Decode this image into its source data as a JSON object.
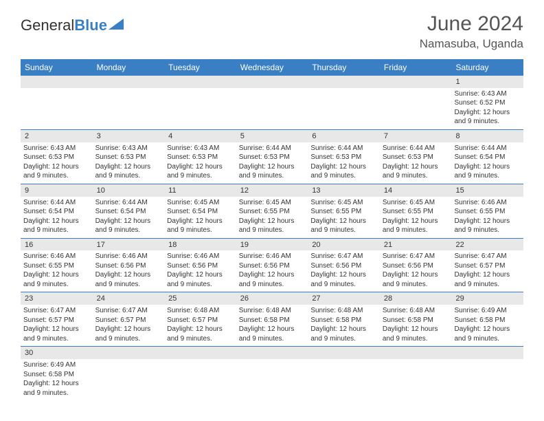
{
  "brand": {
    "part1": "General",
    "part2": "Blue"
  },
  "title": "June 2024",
  "location": "Namasuba, Uganda",
  "colors": {
    "header_bg": "#3a7fc4",
    "numrow_bg": "#e8e8e8",
    "text": "#333333",
    "title_text": "#555555"
  },
  "day_names": [
    "Sunday",
    "Monday",
    "Tuesday",
    "Wednesday",
    "Thursday",
    "Friday",
    "Saturday"
  ],
  "weeks": [
    [
      null,
      null,
      null,
      null,
      null,
      null,
      {
        "d": "1",
        "sr": "6:43 AM",
        "ss": "6:52 PM",
        "dl": "12 hours and 9 minutes."
      }
    ],
    [
      {
        "d": "2",
        "sr": "6:43 AM",
        "ss": "6:53 PM",
        "dl": "12 hours and 9 minutes."
      },
      {
        "d": "3",
        "sr": "6:43 AM",
        "ss": "6:53 PM",
        "dl": "12 hours and 9 minutes."
      },
      {
        "d": "4",
        "sr": "6:43 AM",
        "ss": "6:53 PM",
        "dl": "12 hours and 9 minutes."
      },
      {
        "d": "5",
        "sr": "6:44 AM",
        "ss": "6:53 PM",
        "dl": "12 hours and 9 minutes."
      },
      {
        "d": "6",
        "sr": "6:44 AM",
        "ss": "6:53 PM",
        "dl": "12 hours and 9 minutes."
      },
      {
        "d": "7",
        "sr": "6:44 AM",
        "ss": "6:53 PM",
        "dl": "12 hours and 9 minutes."
      },
      {
        "d": "8",
        "sr": "6:44 AM",
        "ss": "6:54 PM",
        "dl": "12 hours and 9 minutes."
      }
    ],
    [
      {
        "d": "9",
        "sr": "6:44 AM",
        "ss": "6:54 PM",
        "dl": "12 hours and 9 minutes."
      },
      {
        "d": "10",
        "sr": "6:44 AM",
        "ss": "6:54 PM",
        "dl": "12 hours and 9 minutes."
      },
      {
        "d": "11",
        "sr": "6:45 AM",
        "ss": "6:54 PM",
        "dl": "12 hours and 9 minutes."
      },
      {
        "d": "12",
        "sr": "6:45 AM",
        "ss": "6:55 PM",
        "dl": "12 hours and 9 minutes."
      },
      {
        "d": "13",
        "sr": "6:45 AM",
        "ss": "6:55 PM",
        "dl": "12 hours and 9 minutes."
      },
      {
        "d": "14",
        "sr": "6:45 AM",
        "ss": "6:55 PM",
        "dl": "12 hours and 9 minutes."
      },
      {
        "d": "15",
        "sr": "6:46 AM",
        "ss": "6:55 PM",
        "dl": "12 hours and 9 minutes."
      }
    ],
    [
      {
        "d": "16",
        "sr": "6:46 AM",
        "ss": "6:55 PM",
        "dl": "12 hours and 9 minutes."
      },
      {
        "d": "17",
        "sr": "6:46 AM",
        "ss": "6:56 PM",
        "dl": "12 hours and 9 minutes."
      },
      {
        "d": "18",
        "sr": "6:46 AM",
        "ss": "6:56 PM",
        "dl": "12 hours and 9 minutes."
      },
      {
        "d": "19",
        "sr": "6:46 AM",
        "ss": "6:56 PM",
        "dl": "12 hours and 9 minutes."
      },
      {
        "d": "20",
        "sr": "6:47 AM",
        "ss": "6:56 PM",
        "dl": "12 hours and 9 minutes."
      },
      {
        "d": "21",
        "sr": "6:47 AM",
        "ss": "6:56 PM",
        "dl": "12 hours and 9 minutes."
      },
      {
        "d": "22",
        "sr": "6:47 AM",
        "ss": "6:57 PM",
        "dl": "12 hours and 9 minutes."
      }
    ],
    [
      {
        "d": "23",
        "sr": "6:47 AM",
        "ss": "6:57 PM",
        "dl": "12 hours and 9 minutes."
      },
      {
        "d": "24",
        "sr": "6:47 AM",
        "ss": "6:57 PM",
        "dl": "12 hours and 9 minutes."
      },
      {
        "d": "25",
        "sr": "6:48 AM",
        "ss": "6:57 PM",
        "dl": "12 hours and 9 minutes."
      },
      {
        "d": "26",
        "sr": "6:48 AM",
        "ss": "6:58 PM",
        "dl": "12 hours and 9 minutes."
      },
      {
        "d": "27",
        "sr": "6:48 AM",
        "ss": "6:58 PM",
        "dl": "12 hours and 9 minutes."
      },
      {
        "d": "28",
        "sr": "6:48 AM",
        "ss": "6:58 PM",
        "dl": "12 hours and 9 minutes."
      },
      {
        "d": "29",
        "sr": "6:49 AM",
        "ss": "6:58 PM",
        "dl": "12 hours and 9 minutes."
      }
    ],
    [
      {
        "d": "30",
        "sr": "6:49 AM",
        "ss": "6:58 PM",
        "dl": "12 hours and 9 minutes."
      },
      null,
      null,
      null,
      null,
      null,
      null
    ]
  ],
  "labels": {
    "sunrise": "Sunrise:",
    "sunset": "Sunset:",
    "daylight": "Daylight:"
  }
}
